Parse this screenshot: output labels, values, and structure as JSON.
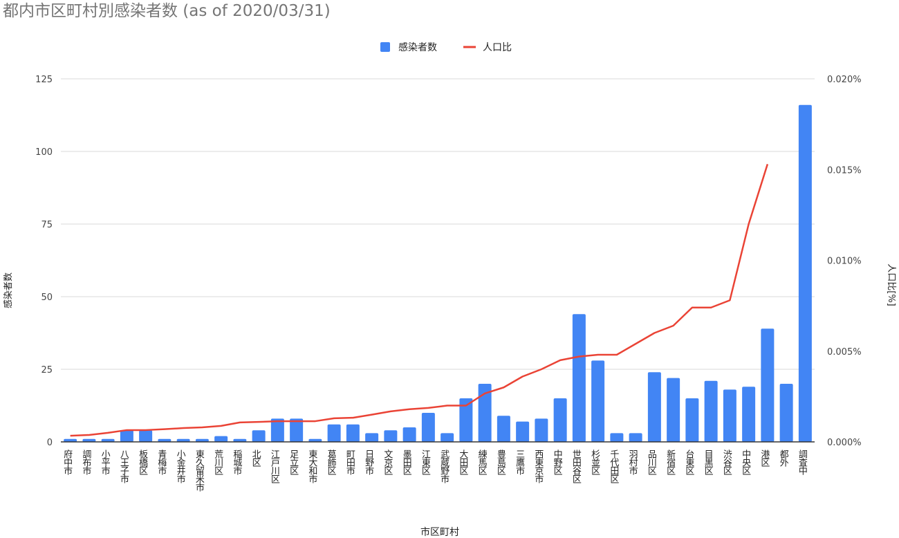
{
  "chart_data": {
    "type": "bar+line",
    "title": "都内市区町村別感染者数 (as of 2020/03/31)",
    "xlabel": "市区町村",
    "ylabel": "感染者数",
    "y2label": "人口比[%]",
    "ylim": [
      0,
      125
    ],
    "y2lim": [
      0,
      0.02
    ],
    "yticks": [
      "0",
      "25",
      "50",
      "75",
      "100",
      "125"
    ],
    "y2ticks": [
      "0.000%",
      "0.005%",
      "0.010%",
      "0.015%",
      "0.020%"
    ],
    "grid": true,
    "legend": "top",
    "categories": [
      "府中市",
      "調布市",
      "小平市",
      "八王子市",
      "板橋区",
      "青梅市",
      "小金井市",
      "東久留米市",
      "荒川区",
      "稲城市",
      "北区",
      "江戸川区",
      "足立区",
      "東大和市",
      "葛飾区",
      "町田市",
      "日野市",
      "文京区",
      "墨田区",
      "江東区",
      "武蔵野市",
      "大田区",
      "練馬区",
      "豊島区",
      "三鷹市",
      "西東京市",
      "中野区",
      "世田谷区",
      "杉並区",
      "千代田区",
      "羽村市",
      "品川区",
      "新宿区",
      "台東区",
      "目黒区",
      "渋谷区",
      "中央区",
      "港区",
      "都外",
      "調査中"
    ],
    "series": [
      {
        "name": "感染者数",
        "type": "bar",
        "axis": "left",
        "color": "#4285f4",
        "values": [
          1,
          1,
          1,
          4,
          4,
          1,
          1,
          1,
          2,
          1,
          4,
          8,
          8,
          1,
          6,
          6,
          3,
          4,
          5,
          10,
          3,
          15,
          20,
          9,
          7,
          8,
          15,
          44,
          28,
          3,
          3,
          24,
          22,
          15,
          21,
          18,
          19,
          39,
          20,
          116
        ]
      },
      {
        "name": "人口比",
        "type": "line",
        "axis": "right",
        "color": "#ea4335",
        "values": [
          0.00034,
          0.00038,
          0.0005,
          0.00065,
          0.00065,
          0.0007,
          0.00076,
          0.0008,
          0.00088,
          0.00107,
          0.0011,
          0.00114,
          0.00114,
          0.00114,
          0.0013,
          0.00133,
          0.0015,
          0.00168,
          0.0018,
          0.00187,
          0.002,
          0.002,
          0.00267,
          0.003,
          0.0036,
          0.004,
          0.0045,
          0.0047,
          0.0048,
          0.0048,
          0.0054,
          0.006,
          0.0064,
          0.0074,
          0.0074,
          0.0078,
          0.012,
          0.0153,
          null,
          null
        ]
      }
    ]
  }
}
